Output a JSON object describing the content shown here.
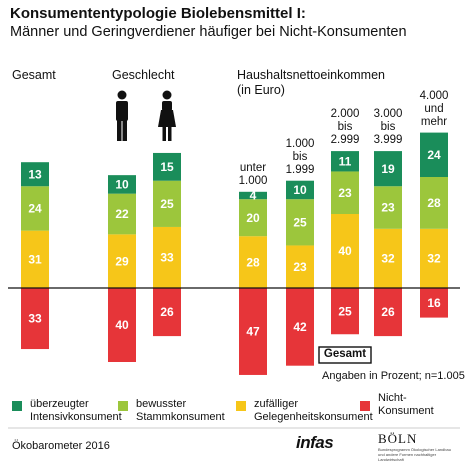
{
  "chart_data": {
    "type": "bar",
    "title": "Konsumententypologie Biolebensmittel I:",
    "subtitle": "Männer und Geringverdiener häufiger bei Nicht-Konsumenten",
    "groups": [
      "Gesamt",
      "Geschlecht",
      "Haushaltsnettoeinkommen\n(in Euro)"
    ],
    "categories": [
      null,
      null,
      null,
      "unter\n1.000",
      "1.000\nbis\n1.999",
      "2.000\nbis\n2.999",
      "3.000\nbis\n3.999",
      "4.000\nund\nmehr"
    ],
    "series": [
      {
        "name": "überzeugter\nIntensivkonsument",
        "color": "#1a8d5a",
        "values": [
          13,
          10,
          15,
          4,
          10,
          11,
          19,
          24
        ]
      },
      {
        "name": "bewusster\nStammkonsument",
        "color": "#9cc63c",
        "values": [
          24,
          22,
          25,
          20,
          25,
          23,
          23,
          28
        ]
      },
      {
        "name": "zufälliger\nGelegenheitskonsument",
        "color": "#f6c619",
        "values": [
          31,
          29,
          33,
          28,
          23,
          40,
          32,
          32
        ]
      },
      {
        "name": "Nicht-\nKonsument",
        "color": "#e63539",
        "values": [
          -33,
          -40,
          -26,
          -47,
          -42,
          -25,
          -26,
          -16
        ],
        "value_labels": [
          "33",
          "40",
          "26",
          "47",
          "42",
          "25",
          "26",
          "16"
        ]
      }
    ],
    "ylim": [
      -55,
      85
    ],
    "note_box": "Gesamt",
    "note": "Angaben in Prozent;  n=1.005",
    "source": "Ökobarometer 2016",
    "logo_infas": "infas",
    "logo_boeln": "BÖLN",
    "logo_boeln_text": "Bundesprogramm Ökologischer Landbau\nund andere Formen nachhaltiger\nLandwirtschaft"
  }
}
